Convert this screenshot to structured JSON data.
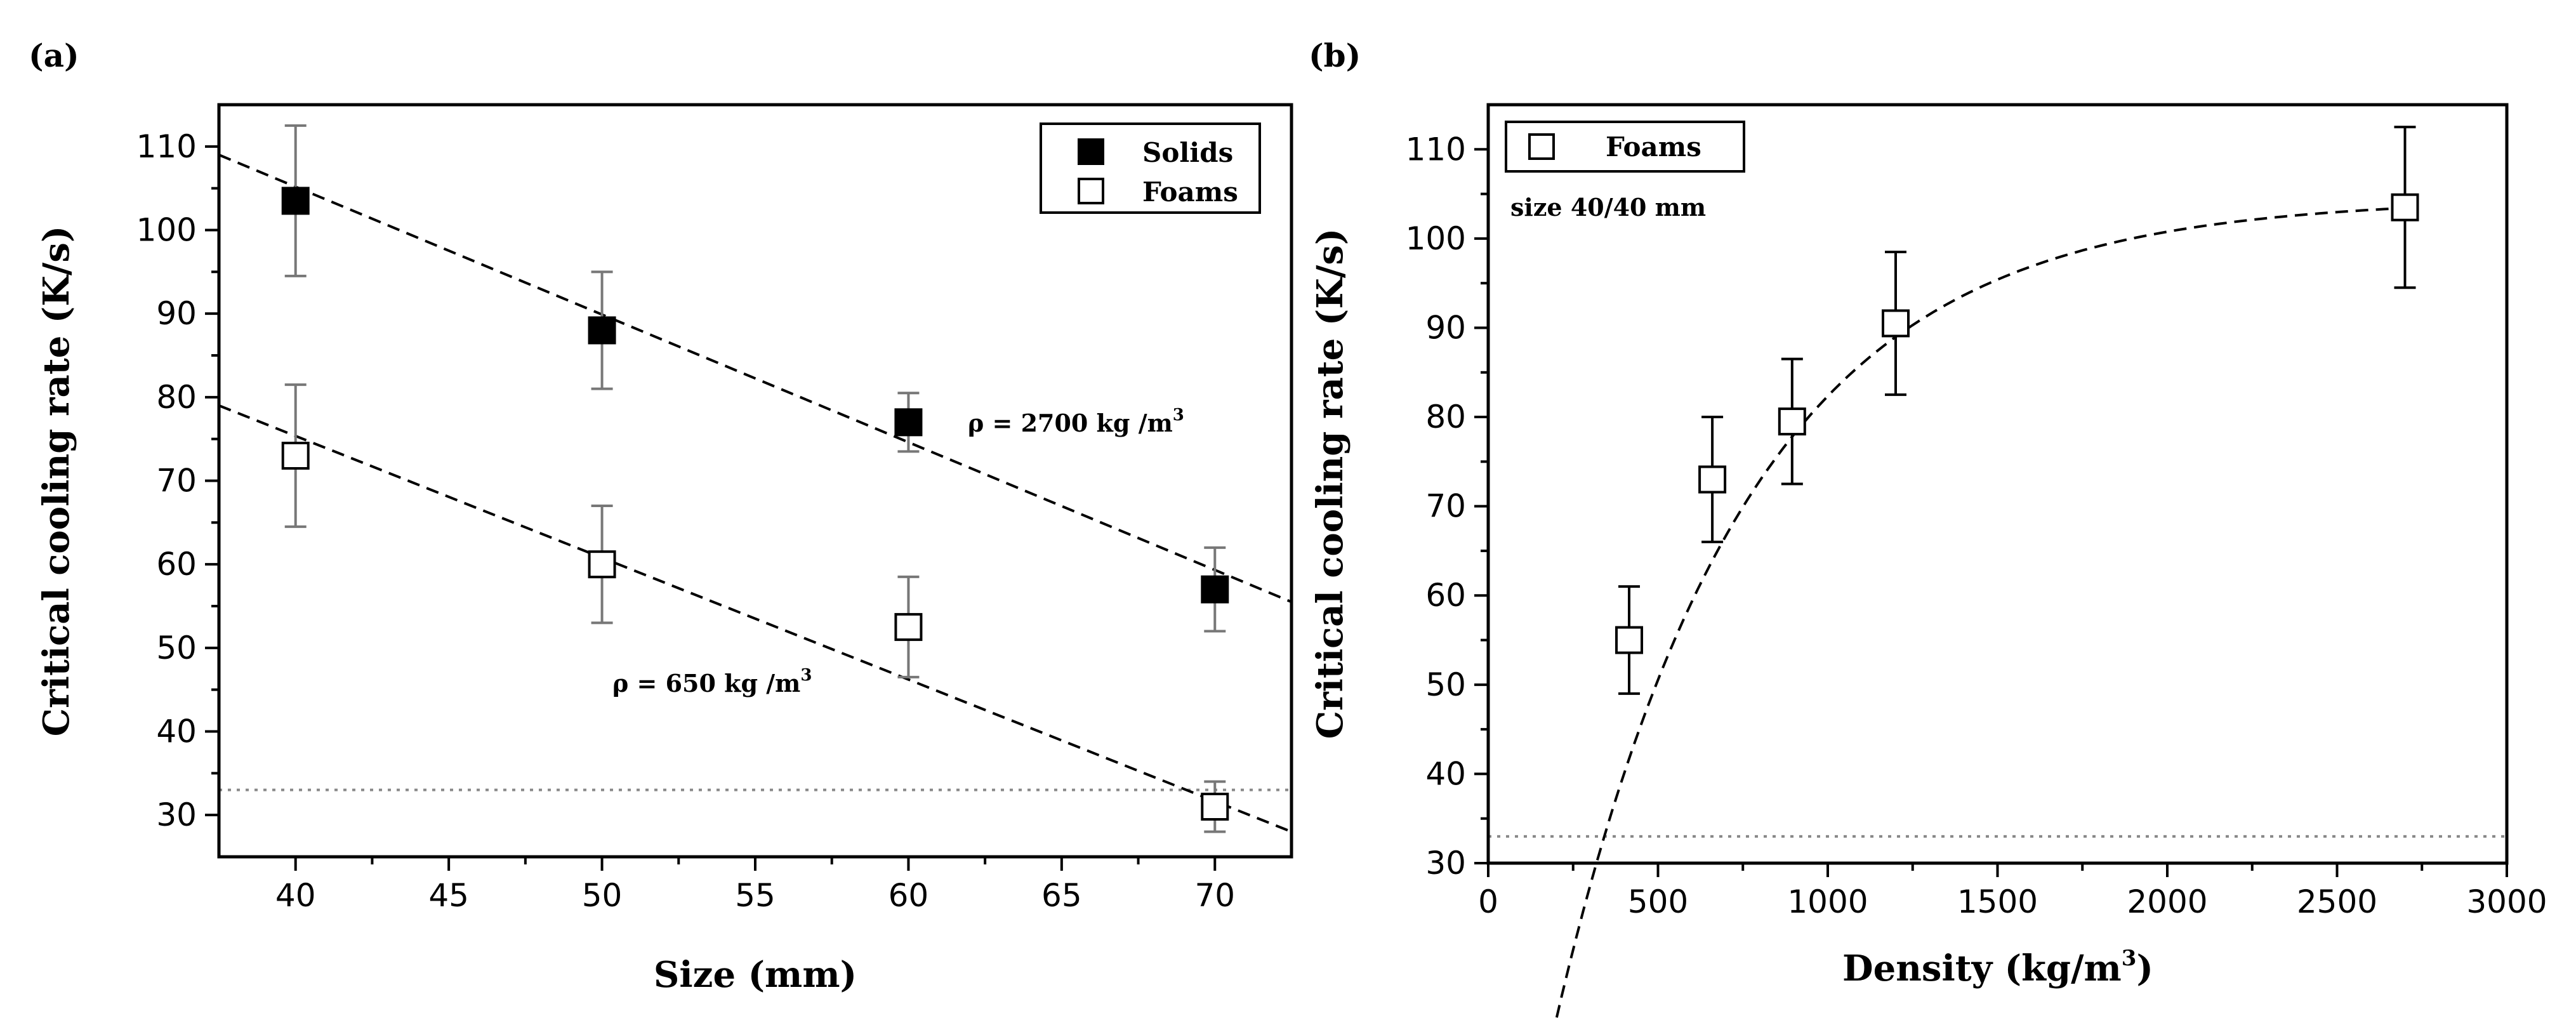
{
  "chart_data": [
    {
      "panel": "(a)",
      "type": "scatter",
      "xlabel": "Size (mm)",
      "ylabel": "Critical cooling rate (K/s)",
      "xlim": [
        37.5,
        72.5
      ],
      "ylim": [
        25,
        115
      ],
      "xticks": [
        40,
        45,
        50,
        55,
        60,
        65,
        70
      ],
      "yticks": [
        30,
        40,
        50,
        60,
        70,
        80,
        90,
        100,
        110
      ],
      "legend_position": "top-right",
      "series": [
        {
          "name": "Solids",
          "marker": "filled-square",
          "x": [
            40,
            50,
            60,
            70
          ],
          "y": [
            103.5,
            88,
            77,
            57
          ],
          "err": [
            9,
            7,
            3.5,
            5
          ],
          "fit": {
            "x": [
              37.5,
              72.5
            ],
            "y": [
              109,
              55.5
            ]
          }
        },
        {
          "name": "Foams",
          "marker": "open-square",
          "x": [
            40,
            50,
            60,
            70
          ],
          "y": [
            73,
            60,
            52.5,
            31
          ],
          "err": [
            8.5,
            7,
            6,
            3
          ],
          "fit": {
            "x": [
              37.5,
              72.5
            ],
            "y": [
              79,
              28
            ]
          }
        }
      ],
      "reference_line": {
        "y": 33,
        "style": "dotted"
      },
      "annotations": [
        {
          "text_main": "ρ = 2700 kg /m",
          "text_sup": "3"
        },
        {
          "text_main": "ρ = 650 kg /m",
          "text_sup": "3"
        }
      ]
    },
    {
      "panel": "(b)",
      "type": "scatter",
      "xlabel_main": "Density (kg/m",
      "xlabel_sup": "3",
      "xlabel_end": ")",
      "ylabel": "Critical cooling rate (K/s)",
      "xlim": [
        0,
        3000
      ],
      "ylim": [
        30,
        115
      ],
      "xticks": [
        0,
        500,
        1000,
        1500,
        2000,
        2500,
        3000
      ],
      "yticks": [
        30,
        40,
        50,
        60,
        70,
        80,
        90,
        100,
        110
      ],
      "legend_position": "top-left",
      "series": [
        {
          "name": "Foams",
          "marker": "open-square",
          "x": [
            415,
            660,
            895,
            1200,
            2700
          ],
          "y": [
            55,
            73,
            79.5,
            90.5,
            103.5
          ],
          "err": [
            6,
            7,
            7,
            8,
            9
          ]
        }
      ],
      "fit": {
        "type": "exponential-saturation",
        "x_start": 175,
        "x_end": 2700,
        "asymptote": 104.5,
        "amplitude": 131.4,
        "rate": 0.00178
      },
      "reference_line": {
        "y": 33,
        "style": "dotted"
      },
      "annotations": [
        {
          "text": "size 40/40 mm"
        }
      ]
    }
  ]
}
